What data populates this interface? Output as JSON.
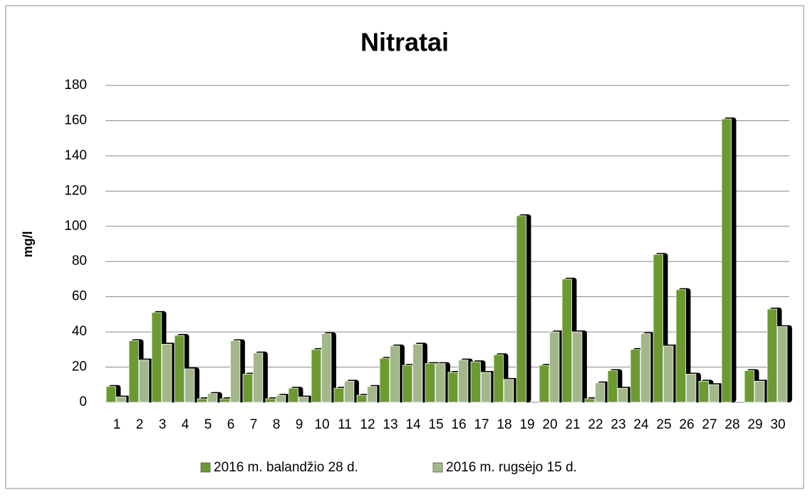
{
  "chart_data": {
    "type": "bar",
    "title": "Nitratai",
    "y_label": "mg/l",
    "categories": [
      "1",
      "2",
      "3",
      "4",
      "5",
      "6",
      "7",
      "8",
      "9",
      "10",
      "11",
      "12",
      "13",
      "14",
      "15",
      "16",
      "17",
      "18",
      "19",
      "20",
      "21",
      "22",
      "23",
      "24",
      "25",
      "26",
      "27",
      "28",
      "29",
      "30"
    ],
    "series": [
      {
        "name": "2016 m. balandžio 28 d.",
        "color": "#6b9a30",
        "values": [
          9,
          35,
          51,
          38,
          2,
          2,
          16,
          2,
          8,
          30,
          8,
          4,
          25,
          21,
          22,
          17,
          23,
          27,
          106,
          21,
          70,
          2,
          18,
          30,
          84,
          64,
          12,
          161,
          18,
          53
        ]
      },
      {
        "name": "2016 m. rugsėjo 15 d.",
        "color": "#a3b88a",
        "values": [
          3,
          24,
          33,
          19,
          5,
          35,
          28,
          4,
          3,
          39,
          12,
          9,
          32,
          33,
          22,
          24,
          17,
          13,
          null,
          40,
          40,
          11,
          8,
          39,
          32,
          16,
          10,
          null,
          12,
          43
        ]
      }
    ],
    "ylim": [
      0,
      180
    ],
    "yticks": [
      0,
      20,
      40,
      60,
      80,
      100,
      120,
      140,
      160,
      180
    ],
    "grid": true,
    "legend": "bottom"
  }
}
